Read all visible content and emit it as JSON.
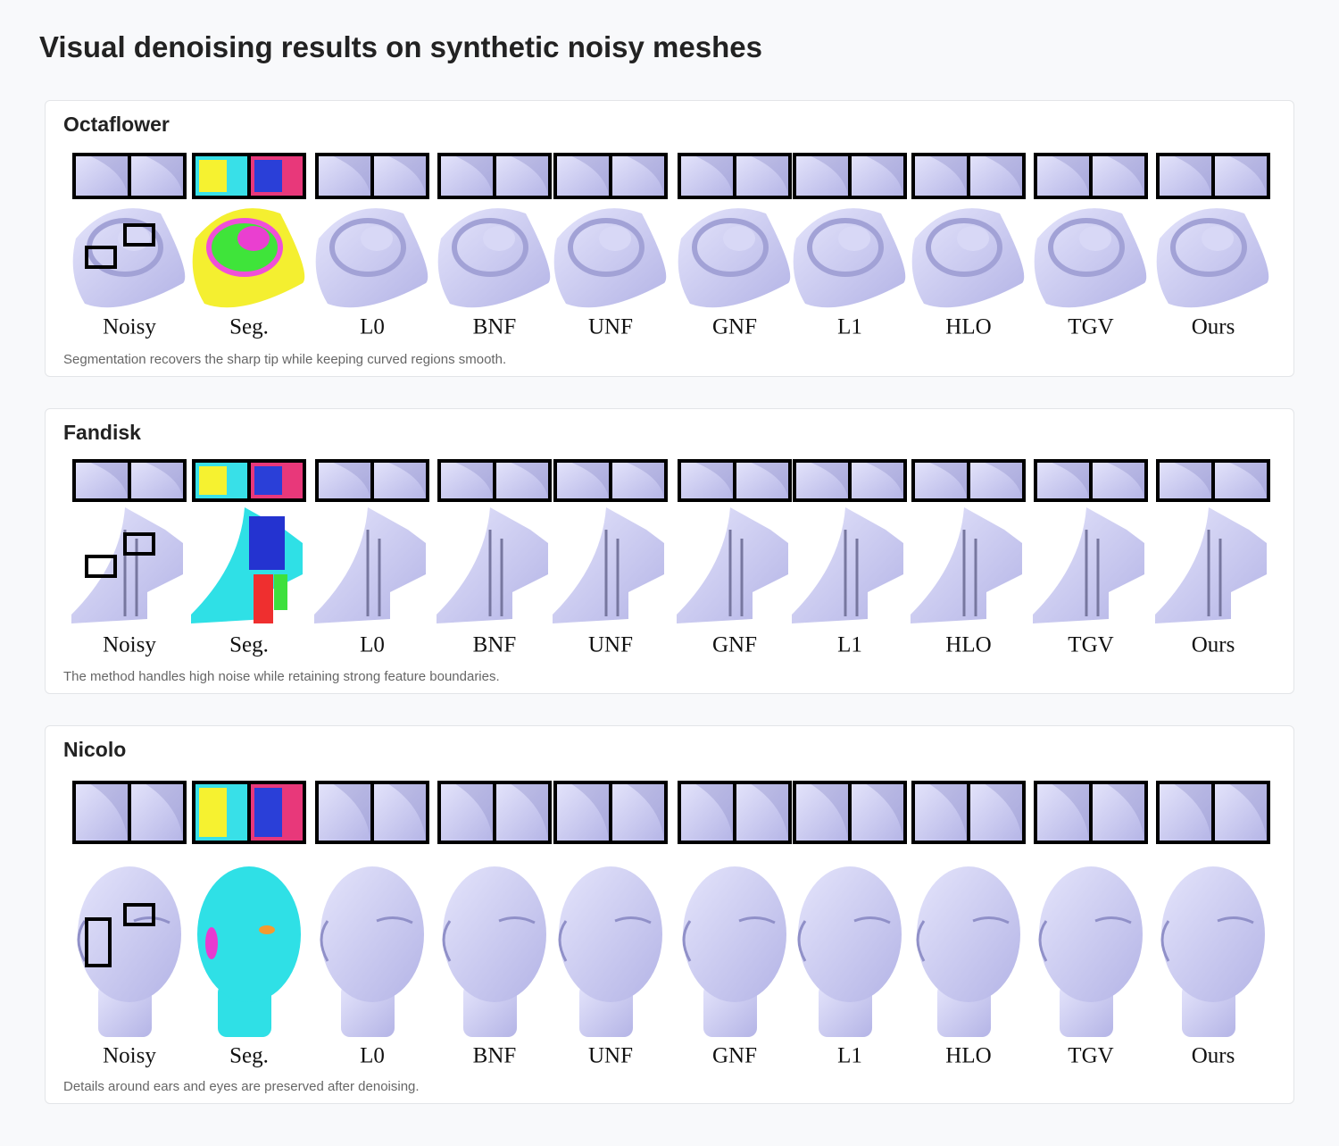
{
  "title": "Visual denoising results on synthetic noisy meshes",
  "panels": [
    {
      "name": "Octaflower",
      "labels": [
        "Noisy",
        "Seg.",
        "L0",
        "BNF",
        "UNF",
        "GNF",
        "L1",
        "HLO",
        "TGV",
        "Ours"
      ],
      "caption": "Segmentation recovers the sharp tip while keeping curved regions smooth."
    },
    {
      "name": "Fandisk",
      "labels": [
        "Noisy",
        "Seg.",
        "L0",
        "BNF",
        "UNF",
        "GNF",
        "L1",
        "HLO",
        "TGV",
        "Ours"
      ],
      "caption": "The method handles high noise while retaining strong feature boundaries."
    },
    {
      "name": "Nicolo",
      "labels": [
        "Noisy",
        "Seg.",
        "L0",
        "BNF",
        "UNF",
        "GNF",
        "L1",
        "HLO",
        "TGV",
        "Ours"
      ],
      "caption": "Details around ears and eyes are preserved after denoising."
    }
  ]
}
